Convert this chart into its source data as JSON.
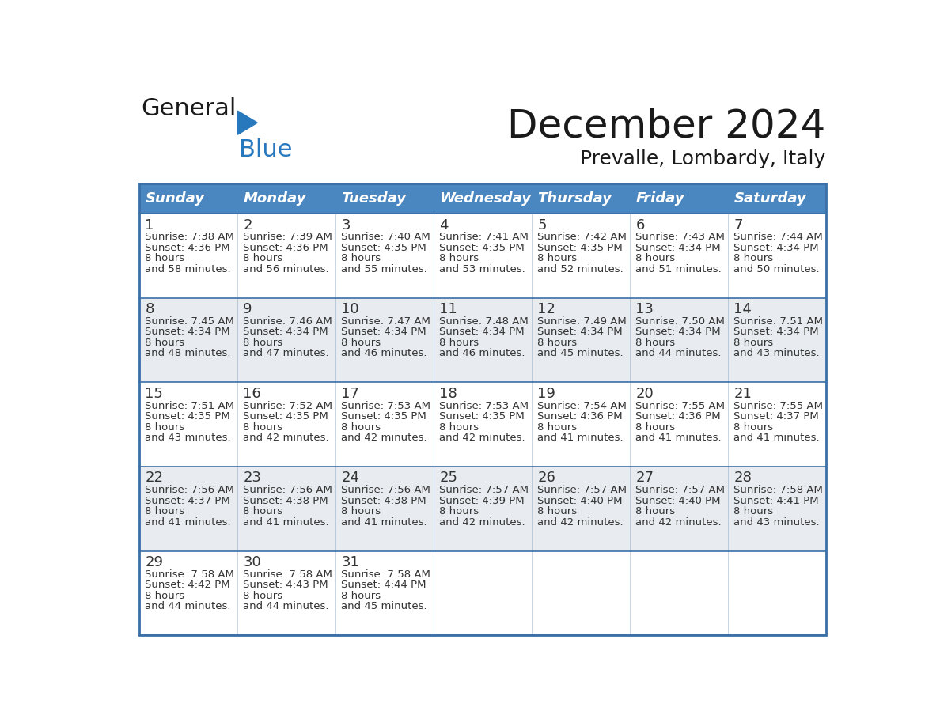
{
  "title": "December 2024",
  "subtitle": "Prevalle, Lombardy, Italy",
  "header_color": "#4a86c0",
  "header_text_color": "#ffffff",
  "cell_bg_white": "#ffffff",
  "cell_bg_gray": "#e8ecf0",
  "row_divider_color": "#3a6fa8",
  "day_names": [
    "Sunday",
    "Monday",
    "Tuesday",
    "Wednesday",
    "Thursday",
    "Friday",
    "Saturday"
  ],
  "weeks": [
    [
      {
        "day": 1,
        "sunrise": "7:38 AM",
        "sunset": "4:36 PM",
        "daylight": "8 hours and 58 minutes."
      },
      {
        "day": 2,
        "sunrise": "7:39 AM",
        "sunset": "4:36 PM",
        "daylight": "8 hours and 56 minutes."
      },
      {
        "day": 3,
        "sunrise": "7:40 AM",
        "sunset": "4:35 PM",
        "daylight": "8 hours and 55 minutes."
      },
      {
        "day": 4,
        "sunrise": "7:41 AM",
        "sunset": "4:35 PM",
        "daylight": "8 hours and 53 minutes."
      },
      {
        "day": 5,
        "sunrise": "7:42 AM",
        "sunset": "4:35 PM",
        "daylight": "8 hours and 52 minutes."
      },
      {
        "day": 6,
        "sunrise": "7:43 AM",
        "sunset": "4:34 PM",
        "daylight": "8 hours and 51 minutes."
      },
      {
        "day": 7,
        "sunrise": "7:44 AM",
        "sunset": "4:34 PM",
        "daylight": "8 hours and 50 minutes."
      }
    ],
    [
      {
        "day": 8,
        "sunrise": "7:45 AM",
        "sunset": "4:34 PM",
        "daylight": "8 hours and 48 minutes."
      },
      {
        "day": 9,
        "sunrise": "7:46 AM",
        "sunset": "4:34 PM",
        "daylight": "8 hours and 47 minutes."
      },
      {
        "day": 10,
        "sunrise": "7:47 AM",
        "sunset": "4:34 PM",
        "daylight": "8 hours and 46 minutes."
      },
      {
        "day": 11,
        "sunrise": "7:48 AM",
        "sunset": "4:34 PM",
        "daylight": "8 hours and 46 minutes."
      },
      {
        "day": 12,
        "sunrise": "7:49 AM",
        "sunset": "4:34 PM",
        "daylight": "8 hours and 45 minutes."
      },
      {
        "day": 13,
        "sunrise": "7:50 AM",
        "sunset": "4:34 PM",
        "daylight": "8 hours and 44 minutes."
      },
      {
        "day": 14,
        "sunrise": "7:51 AM",
        "sunset": "4:34 PM",
        "daylight": "8 hours and 43 minutes."
      }
    ],
    [
      {
        "day": 15,
        "sunrise": "7:51 AM",
        "sunset": "4:35 PM",
        "daylight": "8 hours and 43 minutes."
      },
      {
        "day": 16,
        "sunrise": "7:52 AM",
        "sunset": "4:35 PM",
        "daylight": "8 hours and 42 minutes."
      },
      {
        "day": 17,
        "sunrise": "7:53 AM",
        "sunset": "4:35 PM",
        "daylight": "8 hours and 42 minutes."
      },
      {
        "day": 18,
        "sunrise": "7:53 AM",
        "sunset": "4:35 PM",
        "daylight": "8 hours and 42 minutes."
      },
      {
        "day": 19,
        "sunrise": "7:54 AM",
        "sunset": "4:36 PM",
        "daylight": "8 hours and 41 minutes."
      },
      {
        "day": 20,
        "sunrise": "7:55 AM",
        "sunset": "4:36 PM",
        "daylight": "8 hours and 41 minutes."
      },
      {
        "day": 21,
        "sunrise": "7:55 AM",
        "sunset": "4:37 PM",
        "daylight": "8 hours and 41 minutes."
      }
    ],
    [
      {
        "day": 22,
        "sunrise": "7:56 AM",
        "sunset": "4:37 PM",
        "daylight": "8 hours and 41 minutes."
      },
      {
        "day": 23,
        "sunrise": "7:56 AM",
        "sunset": "4:38 PM",
        "daylight": "8 hours and 41 minutes."
      },
      {
        "day": 24,
        "sunrise": "7:56 AM",
        "sunset": "4:38 PM",
        "daylight": "8 hours and 41 minutes."
      },
      {
        "day": 25,
        "sunrise": "7:57 AM",
        "sunset": "4:39 PM",
        "daylight": "8 hours and 42 minutes."
      },
      {
        "day": 26,
        "sunrise": "7:57 AM",
        "sunset": "4:40 PM",
        "daylight": "8 hours and 42 minutes."
      },
      {
        "day": 27,
        "sunrise": "7:57 AM",
        "sunset": "4:40 PM",
        "daylight": "8 hours and 42 minutes."
      },
      {
        "day": 28,
        "sunrise": "7:58 AM",
        "sunset": "4:41 PM",
        "daylight": "8 hours and 43 minutes."
      }
    ],
    [
      {
        "day": 29,
        "sunrise": "7:58 AM",
        "sunset": "4:42 PM",
        "daylight": "8 hours and 44 minutes."
      },
      {
        "day": 30,
        "sunrise": "7:58 AM",
        "sunset": "4:43 PM",
        "daylight": "8 hours and 44 minutes."
      },
      {
        "day": 31,
        "sunrise": "7:58 AM",
        "sunset": "4:44 PM",
        "daylight": "8 hours and 45 minutes."
      },
      null,
      null,
      null,
      null
    ]
  ],
  "logo_general_color": "#1a1a1a",
  "logo_blue_color": "#2878be",
  "outer_border_color": "#3a6fa8",
  "text_color": "#333333",
  "day_num_fontsize": 13,
  "cell_text_fontsize": 9.5,
  "header_fontsize": 13,
  "title_fontsize": 36,
  "subtitle_fontsize": 18
}
